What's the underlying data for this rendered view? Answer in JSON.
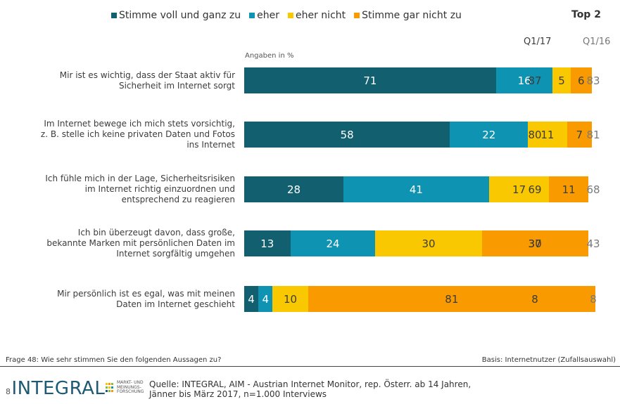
{
  "legend": [
    {
      "label": "Stimme voll und ganz zu",
      "color": "#125f70"
    },
    {
      "label": "eher",
      "color": "#0e93b3"
    },
    {
      "label": "eher nicht",
      "color": "#f9c800"
    },
    {
      "label": "Stimme gar nicht zu",
      "color": "#f99b00"
    }
  ],
  "top2_label": "Top 2",
  "col_headers": [
    "Q1/17",
    "Q1/16"
  ],
  "unit_label": "Angaben in %",
  "chart_data": {
    "type": "bar",
    "orientation": "horizontal-stacked",
    "unit": "%",
    "categories": [
      "Mir ist es wichtig, dass der Staat aktiv für Sicherheit im Internet sorgt",
      "Im Internet bewege ich mich stets vorsichtig, z. B. stelle ich keine privaten Daten und Fotos ins Internet",
      "Ich fühle mich in der Lage, Sicherheitsrisiken im Internet richtig einzuordnen und entsprechend zu reagieren",
      "Ich bin überzeugt davon, dass große, bekannte Marken mit persönlichen Daten im Internet sorgfältig umgehen",
      "Mir persönlich ist es egal, was mit meinen Daten im Internet geschieht"
    ],
    "series": [
      {
        "name": "Stimme voll und ganz zu",
        "values": [
          71,
          58,
          28,
          13,
          4
        ]
      },
      {
        "name": "eher",
        "values": [
          16,
          22,
          41,
          24,
          4
        ]
      },
      {
        "name": "eher nicht",
        "values": [
          5,
          11,
          17,
          30,
          10
        ]
      },
      {
        "name": "Stimme gar nicht zu",
        "values": [
          6,
          7,
          11,
          30,
          81
        ]
      }
    ],
    "top2": {
      "Q1/17": [
        87,
        80,
        69,
        37,
        8
      ],
      "Q1/16": [
        83,
        81,
        68,
        43,
        8
      ]
    }
  },
  "rows": [
    {
      "lines": [
        "Mir ist es wichtig, dass der Staat aktiv für",
        "Sicherheit im Internet sorgt"
      ]
    },
    {
      "lines": [
        "Im Internet bewege ich mich stets vorsichtig,",
        "z. B. stelle ich keine privaten Daten und Fotos",
        "ins Internet"
      ]
    },
    {
      "lines": [
        "Ich fühle mich in der Lage, Sicherheitsrisiken",
        "im Internet richtig einzuordnen und",
        "entsprechend zu reagieren"
      ]
    },
    {
      "lines": [
        "Ich bin überzeugt davon, dass große,",
        "bekannte Marken mit persönlichen Daten im",
        "Internet sorgfältig umgehen"
      ]
    },
    {
      "lines": [
        "Mir persönlich ist es egal, was mit meinen",
        "Daten im Internet geschieht"
      ]
    }
  ],
  "footer": {
    "question": "Frage 48: Wie sehr stimmen Sie den folgenden Aussagen zu?",
    "basis": "Basis: Internetnutzer (Zufallsauswahl)",
    "page_number": "8",
    "logo_text": "INTEGRAL",
    "logo_sub": [
      "MARKT- UND",
      "MEINUNGS-",
      "FORSCHUNG"
    ],
    "source_lines": [
      "Quelle: INTEGRAL, AIM - Austrian Internet Monitor, rep. Österr. ab 14 Jahren,",
      "Jänner bis März 2017, n=1.000 Interviews"
    ]
  }
}
